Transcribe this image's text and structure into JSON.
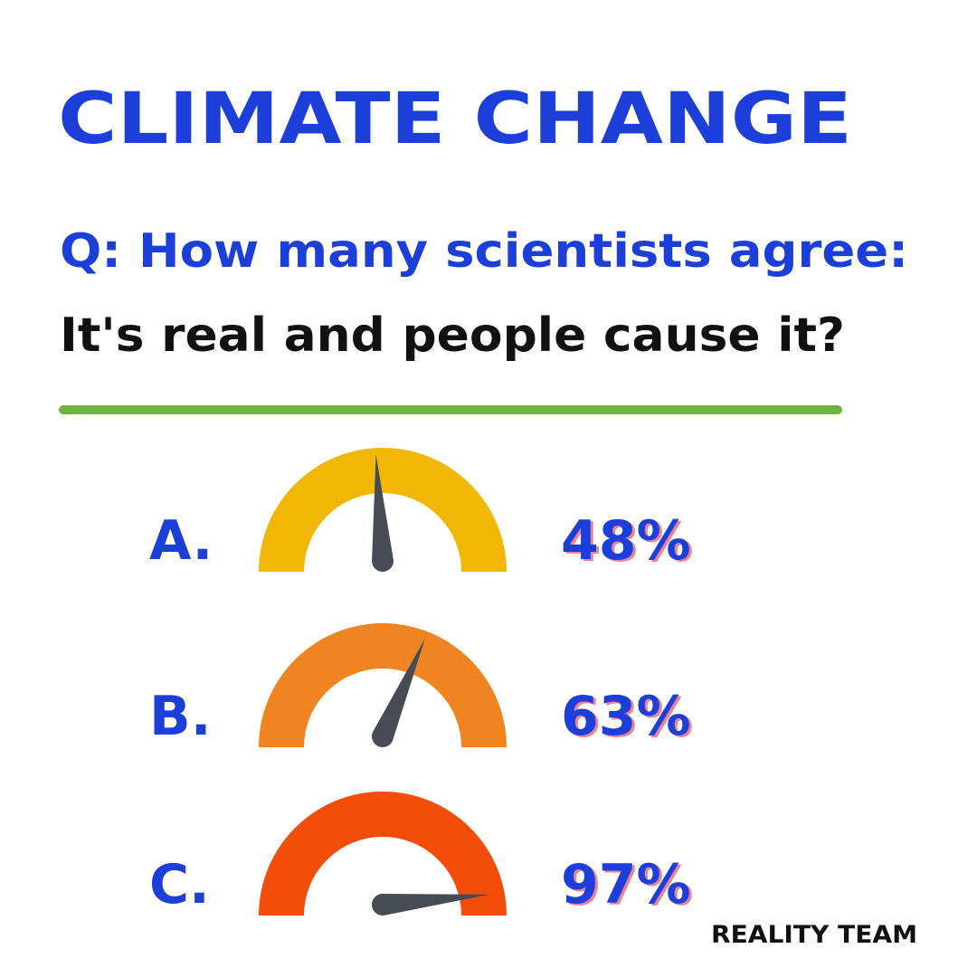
{
  "header": {
    "title": "CLIMATE CHANGE",
    "question": "Q: How many scientists agree:",
    "statement": "It's real and people cause it?"
  },
  "gauge_scale": [
    0,
    100
  ],
  "options": [
    {
      "letter": "A.",
      "value": 48,
      "value_label": "48%",
      "color": "#f2b705"
    },
    {
      "letter": "B.",
      "value": 63,
      "value_label": "63%",
      "color": "#ef8420"
    },
    {
      "letter": "C.",
      "value": 97,
      "value_label": "97%",
      "color": "#f44d0a"
    }
  ],
  "footer": {
    "logo": "REALITY TEAM"
  }
}
